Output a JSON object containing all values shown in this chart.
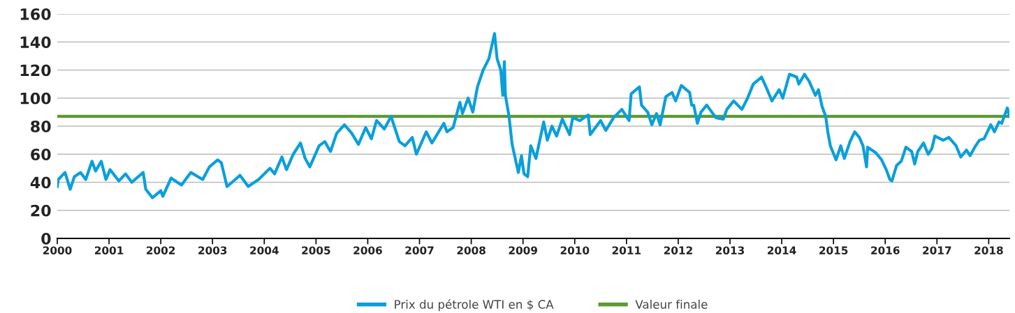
{
  "chart_data": {
    "type": "line",
    "x": [
      2000.0,
      2000.02,
      2000.15,
      2000.25,
      2000.33,
      2000.45,
      2000.55,
      2000.67,
      2000.74,
      2000.85,
      2000.94,
      2001.02,
      2001.19,
      2001.32,
      2001.44,
      2001.66,
      2001.71,
      2001.84,
      2002.0,
      2002.04,
      2002.2,
      2002.4,
      2002.58,
      2002.81,
      2002.94,
      2003.1,
      2003.17,
      2003.28,
      2003.44,
      2003.53,
      2003.69,
      2003.89,
      2004.11,
      2004.2,
      2004.34,
      2004.43,
      2004.56,
      2004.7,
      2004.79,
      2004.88,
      2005.06,
      2005.17,
      2005.28,
      2005.4,
      2005.55,
      2005.69,
      2005.82,
      2005.96,
      2006.07,
      2006.17,
      2006.32,
      2006.45,
      2006.61,
      2006.72,
      2006.86,
      2006.94,
      2007.13,
      2007.24,
      2007.47,
      2007.53,
      2007.65,
      2007.78,
      2007.83,
      2007.94,
      2008.03,
      2008.12,
      2008.23,
      2008.34,
      2008.45,
      2008.5,
      2008.57,
      2008.61,
      2008.64,
      2008.66,
      2008.73,
      2008.79,
      2008.91,
      2008.97,
      2009.02,
      2009.09,
      2009.15,
      2009.25,
      2009.4,
      2009.47,
      2009.56,
      2009.65,
      2009.76,
      2009.9,
      2009.96,
      2010.1,
      2010.26,
      2010.3,
      2010.5,
      2010.6,
      2010.75,
      2010.91,
      2011.05,
      2011.09,
      2011.25,
      2011.29,
      2011.41,
      2011.49,
      2011.58,
      2011.65,
      2011.76,
      2011.88,
      2011.95,
      2012.06,
      2012.22,
      2012.26,
      2012.3,
      2012.37,
      2012.44,
      2012.55,
      2012.73,
      2012.87,
      2012.94,
      2013.07,
      2013.23,
      2013.34,
      2013.45,
      2013.61,
      2013.72,
      2013.81,
      2013.95,
      2014.02,
      2014.15,
      2014.29,
      2014.33,
      2014.44,
      2014.53,
      2014.65,
      2014.71,
      2014.78,
      2014.85,
      2014.89,
      2014.94,
      2015.05,
      2015.14,
      2015.21,
      2015.32,
      2015.41,
      2015.5,
      2015.57,
      2015.64,
      2015.66,
      2015.82,
      2015.93,
      2016.02,
      2016.09,
      2016.13,
      2016.22,
      2016.31,
      2016.4,
      2016.51,
      2016.57,
      2016.63,
      2016.74,
      2016.83,
      2016.9,
      2016.96,
      2017.12,
      2017.23,
      2017.37,
      2017.46,
      2017.57,
      2017.64,
      2017.73,
      2017.82,
      2017.91,
      2018.04,
      2018.11,
      2018.2,
      2018.25,
      2018.36,
      2018.4
    ],
    "series": [
      {
        "name": "Prix du pétrole WTI en $ CA",
        "color": "#0a9fdb",
        "values": [
          37,
          42,
          47,
          35,
          44,
          47,
          42,
          55,
          48,
          55,
          42,
          49,
          41,
          46,
          40,
          47,
          35,
          29,
          34,
          30,
          43,
          38,
          47,
          42,
          51,
          56,
          54,
          37,
          42,
          45,
          37,
          42,
          50,
          46,
          58,
          49,
          60,
          68,
          57,
          51,
          66,
          69,
          62,
          75,
          81,
          75,
          67,
          79,
          71,
          84,
          78,
          87,
          69,
          66,
          72,
          60,
          76,
          68,
          82,
          76,
          79,
          97,
          89,
          100,
          90,
          108,
          120,
          128,
          146,
          128,
          120,
          102,
          126,
          102,
          87,
          67,
          47,
          59,
          46,
          44,
          66,
          57,
          83,
          70,
          80,
          73,
          85,
          74,
          86,
          84,
          88,
          74,
          84,
          77,
          86,
          92,
          84,
          103,
          108,
          95,
          90,
          81,
          89,
          81,
          101,
          104,
          98,
          109,
          104,
          95,
          95,
          82,
          90,
          95,
          86,
          85,
          92,
          98,
          92,
          100,
          110,
          115,
          106,
          98,
          106,
          100,
          117,
          115,
          110,
          117,
          112,
          102,
          106,
          94,
          87,
          76,
          66,
          56,
          66,
          57,
          69,
          76,
          72,
          66,
          51,
          65,
          61,
          56,
          49,
          42,
          41,
          52,
          55,
          65,
          62,
          53,
          62,
          68,
          60,
          64,
          73,
          70,
          72,
          66,
          58,
          63,
          59,
          65,
          70,
          71,
          81,
          76,
          83,
          82,
          93,
          87
        ]
      }
    ],
    "ref_lines": [
      {
        "axis": "y",
        "value": 87,
        "label": "Valeur finale",
        "color": "#5a9a32",
        "line_style": "solid"
      }
    ],
    "xlim": [
      2000,
      2018.4
    ],
    "xticks": [
      2000,
      2001,
      2002,
      2003,
      2004,
      2005,
      2006,
      2007,
      2008,
      2009,
      2010,
      2011,
      2012,
      2013,
      2014,
      2015,
      2016,
      2017,
      2018
    ],
    "ylim": [
      0,
      160
    ],
    "yticks": [
      0,
      20,
      40,
      60,
      80,
      100,
      120,
      140,
      160
    ],
    "grid": "y",
    "legend": "bottom",
    "marker": "none",
    "line_style": "solid"
  }
}
